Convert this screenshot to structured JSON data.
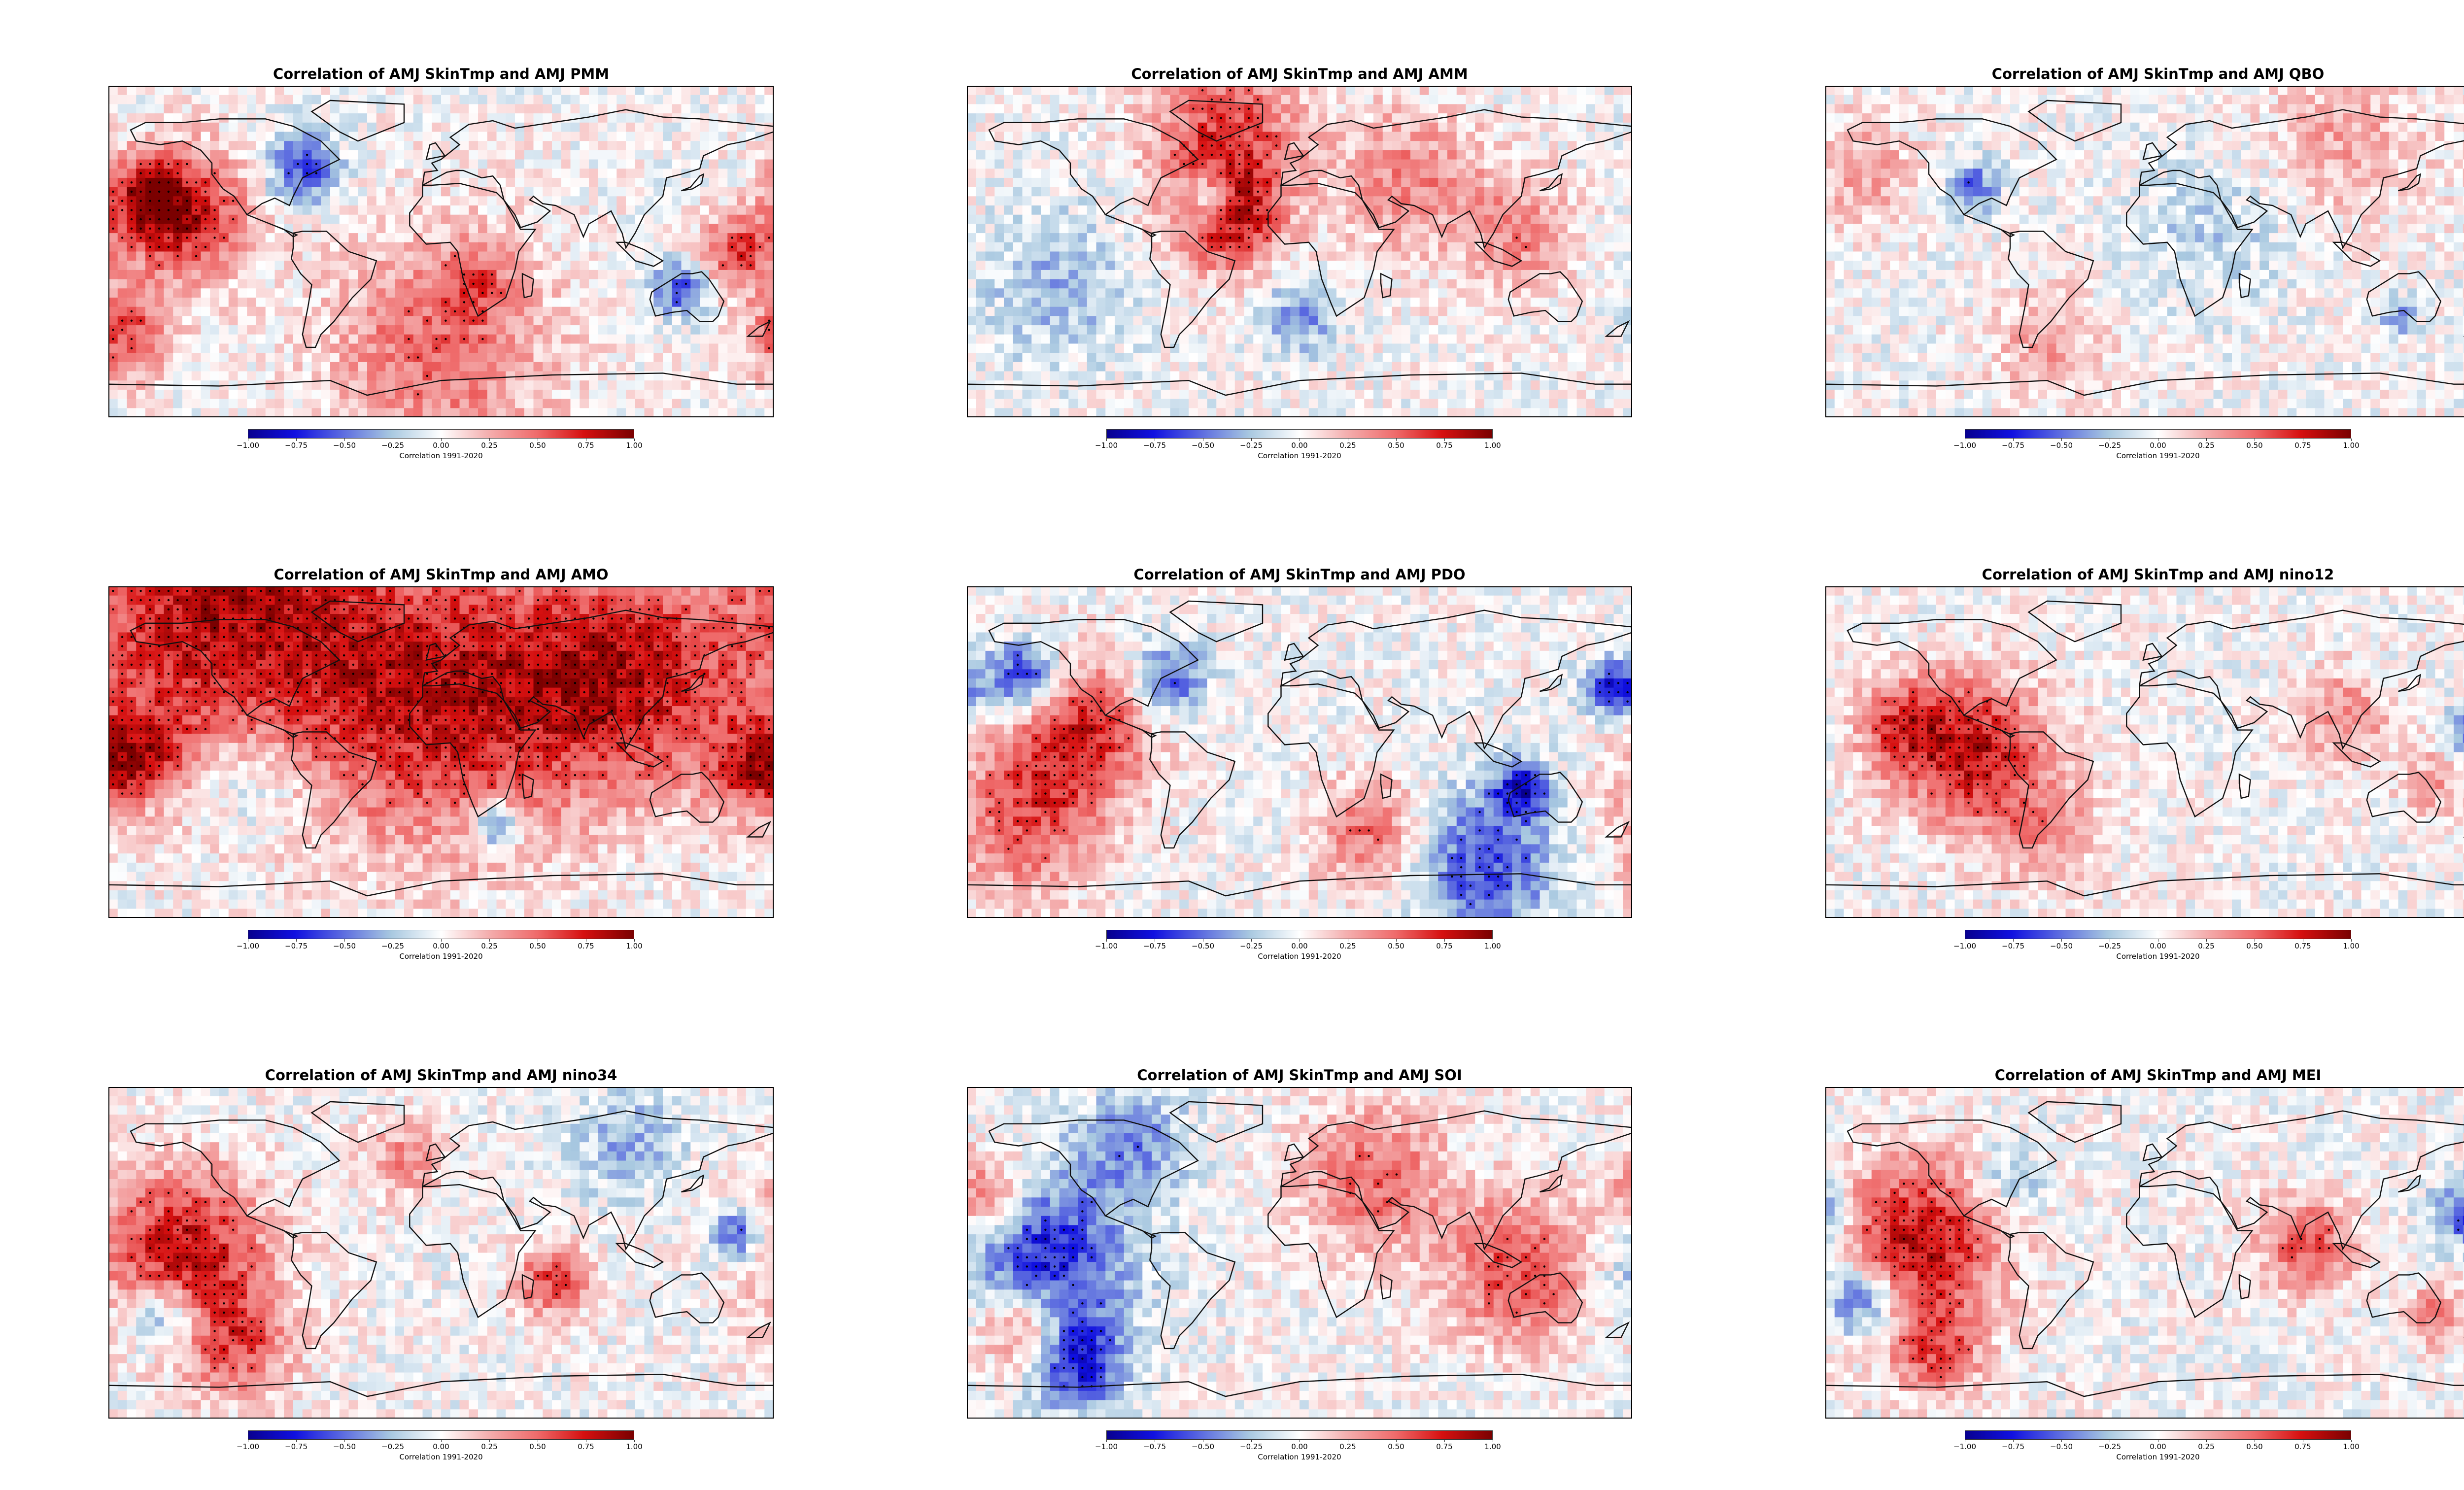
{
  "figure": {
    "panels": [
      {
        "title": "Correlation of AMJ SkinTmp and AMJ PMM",
        "index": "PMM"
      },
      {
        "title": "Correlation of AMJ SkinTmp and AMJ AMM",
        "index": "AMM"
      },
      {
        "title": "Correlation of AMJ SkinTmp and AMJ QBO",
        "index": "QBO"
      },
      {
        "title": "Correlation of AMJ SkinTmp and AMJ AMO",
        "index": "AMO"
      },
      {
        "title": "Correlation of AMJ SkinTmp and AMJ PDO",
        "index": "PDO"
      },
      {
        "title": "Correlation of AMJ SkinTmp and AMJ nino12",
        "index": "nino12"
      },
      {
        "title": "Correlation of AMJ SkinTmp and AMJ nino34",
        "index": "nino34"
      },
      {
        "title": "Correlation of AMJ SkinTmp and AMJ SOI",
        "index": "SOI"
      },
      {
        "title": "Correlation of AMJ SkinTmp and AMJ MEI",
        "index": "MEI"
      }
    ],
    "colorbar": {
      "label": "Correlation 1991-2020",
      "ticks": [
        "−1.00",
        "−0.75",
        "−0.50",
        "−0.25",
        "0.00",
        "0.25",
        "0.50",
        "0.75",
        "1.00"
      ],
      "min": -1.0,
      "max": 1.0,
      "colormap": "seismic",
      "colors": [
        "#08008f",
        "#1010e0",
        "#5f6fe0",
        "#a8c8e0",
        "#ffffff",
        "#f4b0b0",
        "#ef6a6a",
        "#d61010",
        "#7a0000"
      ]
    },
    "significance_marker": "stippling dots",
    "projection": "global equirectangular, coastlines and country borders"
  }
}
